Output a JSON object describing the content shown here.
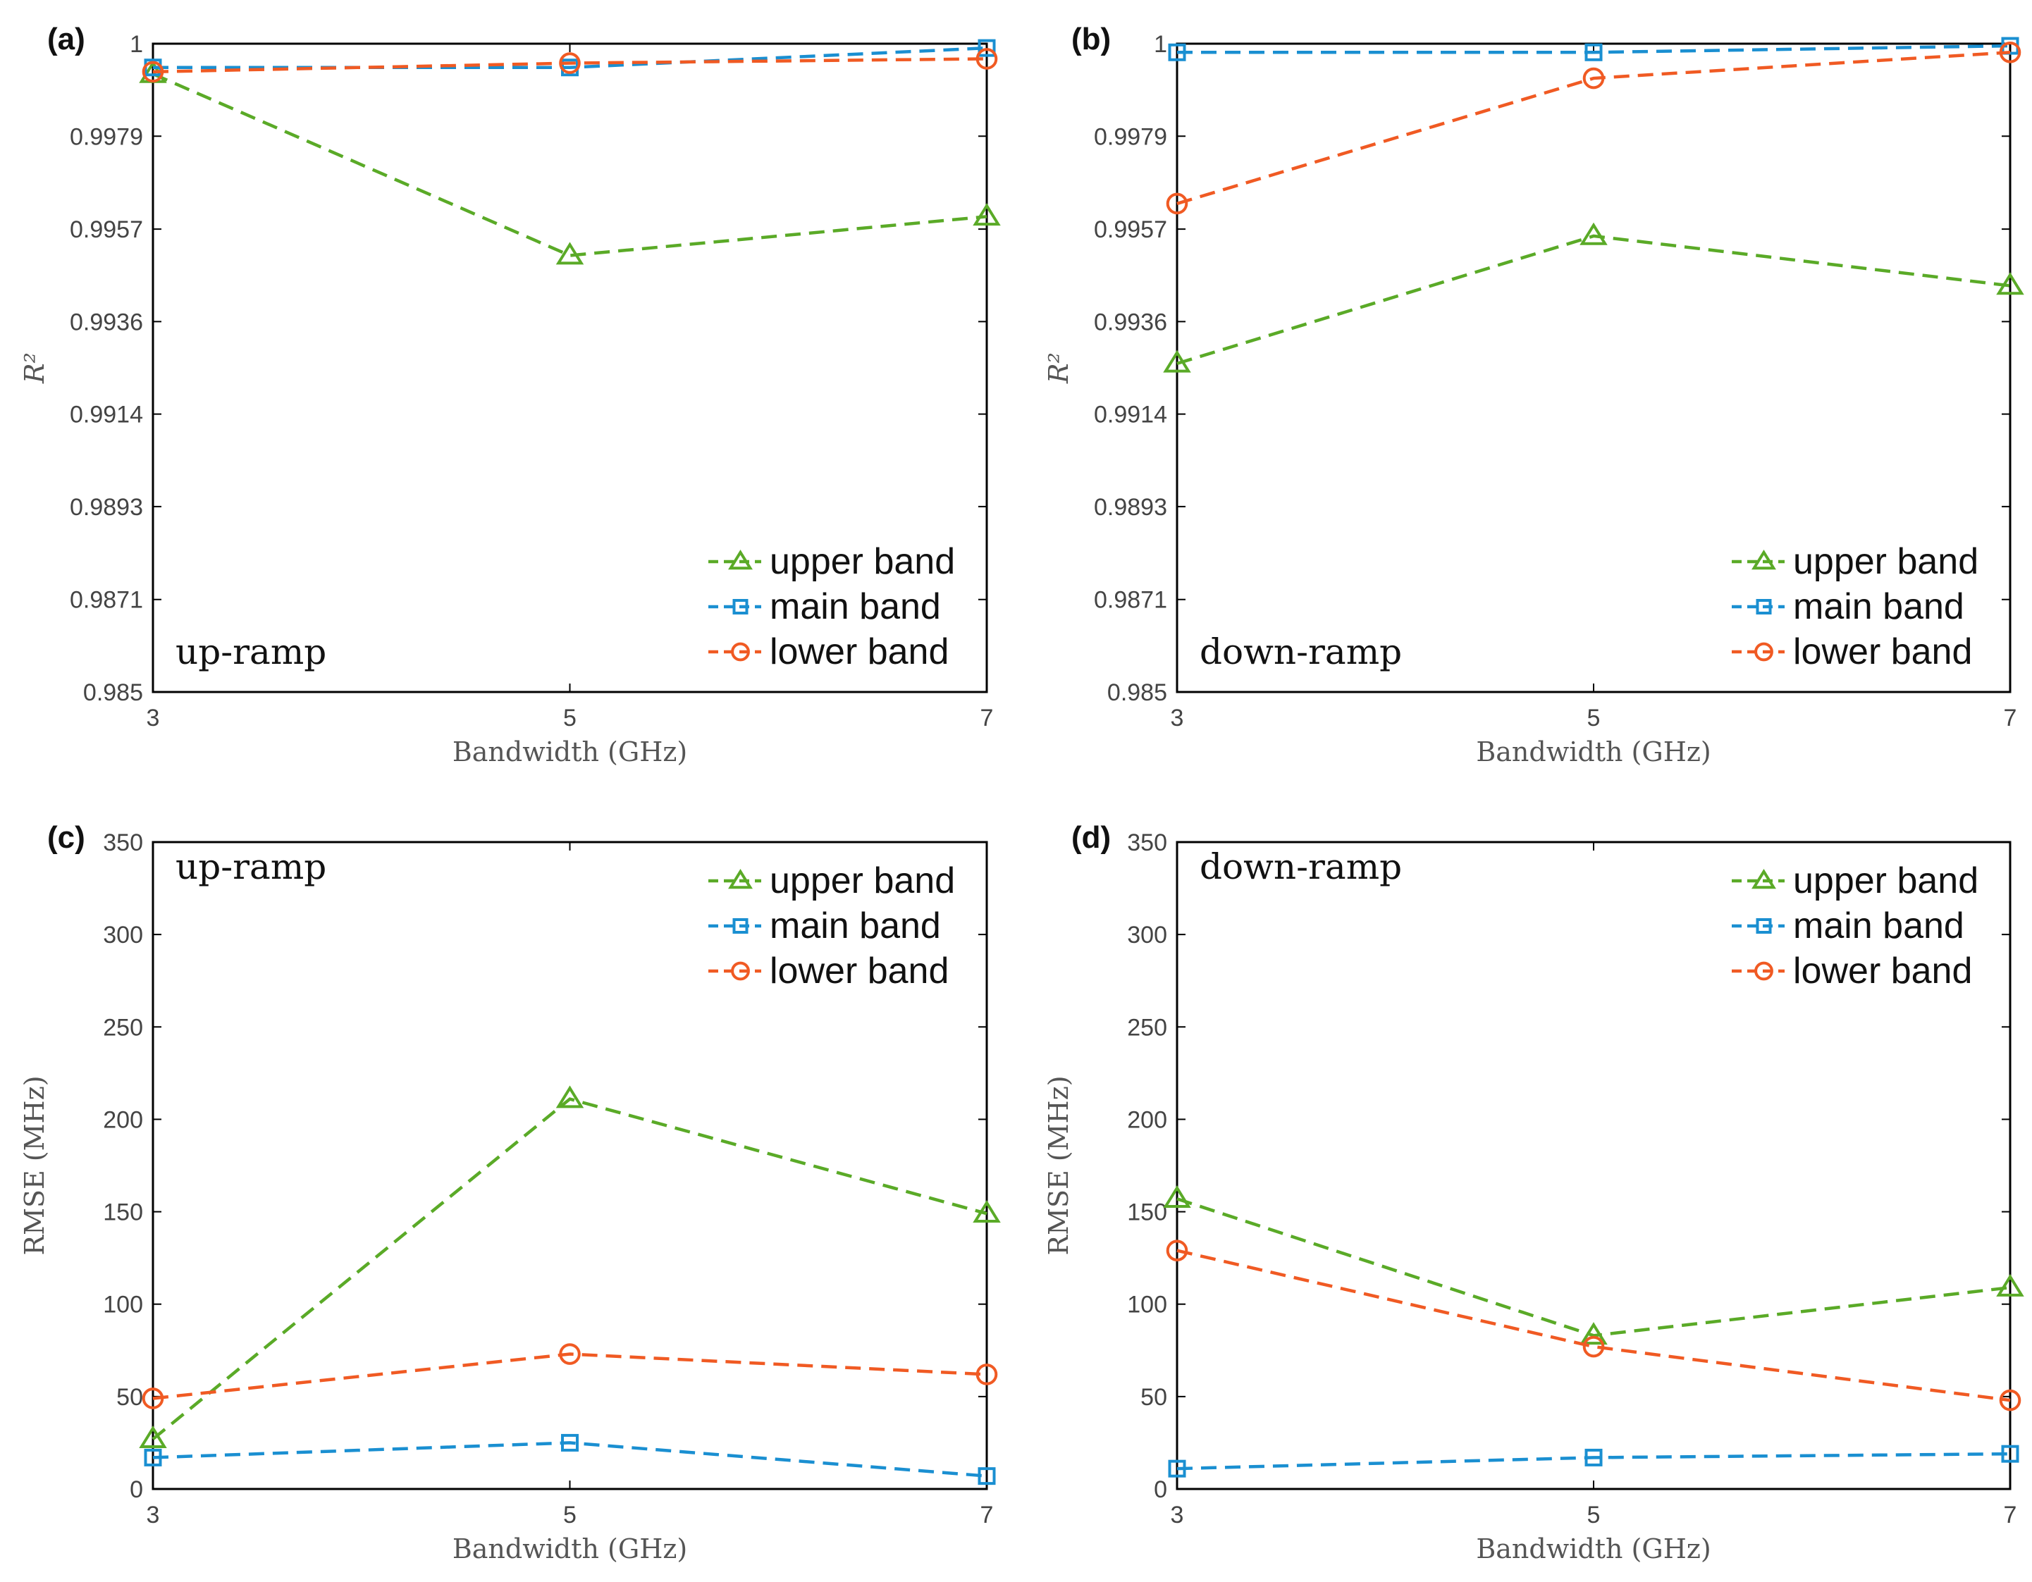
{
  "colors": {
    "upper": "#5aaa27",
    "main": "#1a8fd1",
    "lower": "#f05a23",
    "axis": "#000000",
    "text": "#444444"
  },
  "chart_data": [
    {
      "type": "line",
      "panel_label": "(a)",
      "annotation": "up-ramp",
      "annotation_position": "bottom-left",
      "legend_position": "bottom-right",
      "xlabel": "Bandwidth (GHz)",
      "ylabel": "R²",
      "x": [
        3,
        5,
        7
      ],
      "x_ticks": [
        "3",
        "5",
        "7"
      ],
      "ylim": [
        0.985,
        1.0
      ],
      "y_ticks": [
        0.985,
        0.98714,
        0.98929,
        0.99143,
        0.99357,
        0.99571,
        0.99786,
        1.0
      ],
      "y_tick_labels": [
        "0.985",
        "0.9871",
        "0.9893",
        "0.9914",
        "0.9936",
        "0.9957",
        "0.9979",
        "1"
      ],
      "series": [
        {
          "name": "upper band",
          "key": "upper",
          "marker": "triangle",
          "values": [
            0.9993,
            0.9951,
            0.996
          ]
        },
        {
          "name": "main band",
          "key": "main",
          "marker": "square",
          "values": [
            0.99945,
            0.99945,
            0.9999
          ]
        },
        {
          "name": "lower band",
          "key": "lower",
          "marker": "circle",
          "values": [
            0.99935,
            0.99955,
            0.99965
          ]
        }
      ]
    },
    {
      "type": "line",
      "panel_label": "(b)",
      "annotation": "down-ramp",
      "annotation_position": "bottom-left",
      "legend_position": "bottom-right",
      "xlabel": "Bandwidth (GHz)",
      "ylabel": "R²",
      "x": [
        3,
        5,
        7
      ],
      "x_ticks": [
        "3",
        "5",
        "7"
      ],
      "ylim": [
        0.985,
        1.0
      ],
      "y_ticks": [
        0.985,
        0.98714,
        0.98929,
        0.99143,
        0.99357,
        0.99571,
        0.99786,
        1.0
      ],
      "y_tick_labels": [
        "0.985",
        "0.9871",
        "0.9893",
        "0.9914",
        "0.9936",
        "0.9957",
        "0.9979",
        "1"
      ],
      "series": [
        {
          "name": "upper band",
          "key": "upper",
          "marker": "triangle",
          "values": [
            0.9926,
            0.99555,
            0.9944
          ]
        },
        {
          "name": "main band",
          "key": "main",
          "marker": "square",
          "values": [
            0.9998,
            0.9998,
            0.99995
          ]
        },
        {
          "name": "lower band",
          "key": "lower",
          "marker": "circle",
          "values": [
            0.9963,
            0.9992,
            0.9998
          ]
        }
      ]
    },
    {
      "type": "line",
      "panel_label": "(c)",
      "annotation": "up-ramp",
      "annotation_position": "top-left",
      "legend_position": "top-right",
      "xlabel": "Bandwidth (GHz)",
      "ylabel": "RMSE (MHz)",
      "x": [
        3,
        5,
        7
      ],
      "x_ticks": [
        "3",
        "5",
        "7"
      ],
      "ylim": [
        0,
        350
      ],
      "y_ticks": [
        0,
        50,
        100,
        150,
        200,
        250,
        300,
        350
      ],
      "y_tick_labels": [
        "0",
        "50",
        "100",
        "150",
        "200",
        "250",
        "300",
        "350"
      ],
      "series": [
        {
          "name": "upper band",
          "key": "upper",
          "marker": "triangle",
          "values": [
            27,
            211,
            149
          ]
        },
        {
          "name": "main band",
          "key": "main",
          "marker": "square",
          "values": [
            17,
            25,
            7
          ]
        },
        {
          "name": "lower band",
          "key": "lower",
          "marker": "circle",
          "values": [
            49,
            73,
            62
          ]
        }
      ]
    },
    {
      "type": "line",
      "panel_label": "(d)",
      "annotation": "down-ramp",
      "annotation_position": "top-left",
      "legend_position": "top-right",
      "xlabel": "Bandwidth (GHz)",
      "ylabel": "RMSE (MHz)",
      "x": [
        3,
        5,
        7
      ],
      "x_ticks": [
        "3",
        "5",
        "7"
      ],
      "ylim": [
        0,
        350
      ],
      "y_ticks": [
        0,
        50,
        100,
        150,
        200,
        250,
        300,
        350
      ],
      "y_tick_labels": [
        "0",
        "50",
        "100",
        "150",
        "200",
        "250",
        "300",
        "350"
      ],
      "series": [
        {
          "name": "upper band",
          "key": "upper",
          "marker": "triangle",
          "values": [
            157,
            83,
            109
          ]
        },
        {
          "name": "main band",
          "key": "main",
          "marker": "square",
          "values": [
            11,
            17,
            19
          ]
        },
        {
          "name": "lower band",
          "key": "lower",
          "marker": "circle",
          "values": [
            129,
            77,
            48
          ]
        }
      ]
    }
  ]
}
